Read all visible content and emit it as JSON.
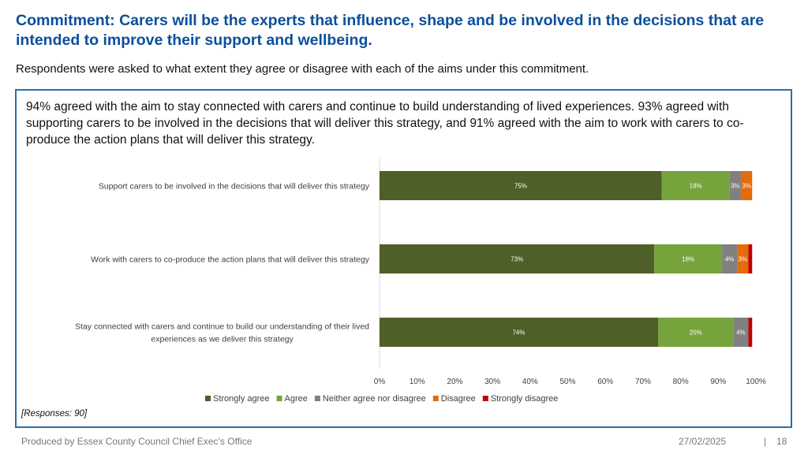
{
  "header": {
    "title": "Commitment: Carers will be the experts that influence, shape and be involved in the decisions that are intended to improve their support and wellbeing.",
    "subtitle": "Respondents were asked to what extent they agree or disagree with each of the aims under this commitment."
  },
  "summary": "94% agreed with the aim to stay connected with carers and continue to build understanding of lived experiences. 93% agreed with supporting carers to be involved in the decisions that will deliver this strategy, and 91% agreed with the aim to work with carers to co-produce the action plans that will deliver this strategy.",
  "chart_data": {
    "type": "bar",
    "orientation": "horizontal",
    "stacked": true,
    "categories": [
      [
        "Support carers to be involved in the decisions that will deliver this strategy"
      ],
      [
        "Work with carers to co-produce the action plans that will deliver this strategy"
      ],
      [
        "Stay connected with carers and continue to build our understanding of their lived",
        "experiences as we deliver this strategy"
      ]
    ],
    "series": [
      {
        "name": "Strongly agree",
        "color": "#4e5f27",
        "values": [
          75,
          73,
          74
        ],
        "labels": [
          "75%",
          "73%",
          "74%"
        ]
      },
      {
        "name": "Agree",
        "color": "#76a33c",
        "values": [
          18,
          18,
          20
        ],
        "labels": [
          "18%",
          "18%",
          "20%"
        ]
      },
      {
        "name": "Neither agree nor disagree",
        "color": "#808080",
        "values": [
          3,
          4,
          4
        ],
        "labels": [
          "3%",
          "4%",
          "4%"
        ]
      },
      {
        "name": "Disagree",
        "color": "#e46c0a",
        "values": [
          3,
          3,
          0
        ],
        "labels": [
          "3%",
          "3%",
          ""
        ]
      },
      {
        "name": "Strongly disagree",
        "color": "#c00000",
        "values": [
          0,
          1,
          1
        ],
        "labels": [
          "",
          "",
          ""
        ]
      }
    ],
    "xlim": [
      0,
      100
    ],
    "xticks": [
      "0%",
      "10%",
      "20%",
      "30%",
      "40%",
      "50%",
      "60%",
      "70%",
      "80%",
      "90%",
      "100%"
    ],
    "legend": "bottom",
    "grid": false
  },
  "notes": {
    "responses": "[Responses: 90]"
  },
  "footer": {
    "produced_by": "Produced by Essex County Council Chief Exec’s Office",
    "date": "27/02/2025",
    "separator": "|",
    "page": "18"
  }
}
